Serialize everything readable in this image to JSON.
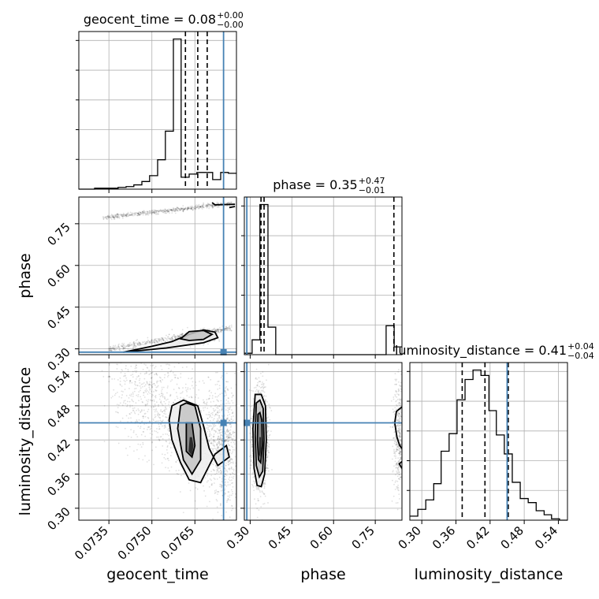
{
  "colors": {
    "truth": "#4682b4",
    "line": "#000000",
    "grid": "#b0b0b0",
    "scatter": "#000000"
  },
  "chart_data": {
    "type": "corner",
    "grid": true,
    "parameters": [
      "geocent_time",
      "phase",
      "luminosity_distance"
    ],
    "truths": {
      "geocent_time": 0.0775,
      "phase": 0.288,
      "luminosity_distance": 0.45
    },
    "ranges": {
      "geocent_time": [
        0.07245,
        0.07795
      ],
      "phase": [
        0.279,
        0.846
      ],
      "luminosity_distance": [
        0.279,
        0.556
      ]
    },
    "ticks": {
      "geocent_time": {
        "values": [
          0.0735,
          0.075,
          0.0765
        ],
        "labels": [
          "0.0735",
          "0.0750",
          "0.0765"
        ]
      },
      "phase": {
        "values": [
          0.3,
          0.45,
          0.6,
          0.75
        ],
        "labels": [
          "0.30",
          "0.45",
          "0.60",
          "0.75"
        ]
      },
      "luminosity_distance": {
        "values": [
          0.3,
          0.36,
          0.42,
          0.48,
          0.54
        ],
        "labels": [
          "0.30",
          "0.36",
          "0.42",
          "0.48",
          "0.54"
        ]
      }
    },
    "titles": {
      "geocent_time": {
        "prefix": "geocent_time = ",
        "value": "0.08",
        "plus": "+0.00",
        "minus": "−0.00"
      },
      "phase": {
        "prefix": "phase = ",
        "value": "0.35",
        "plus": "+0.47",
        "minus": "−0.01"
      },
      "luminosity_distance": {
        "prefix": "luminosity_distance = ",
        "value": "0.41",
        "plus": "+0.04",
        "minus": "−0.04"
      }
    },
    "axis_labels": {
      "x": [
        "geocent_time",
        "phase",
        "luminosity_distance"
      ],
      "y": [
        "phase",
        "luminosity_distance"
      ]
    },
    "histograms": {
      "geocent_time": {
        "edges": [
          0.07245,
          0.07272,
          0.073,
          0.07327,
          0.07355,
          0.07382,
          0.0741,
          0.07437,
          0.07465,
          0.07492,
          0.0752,
          0.07547,
          0.07575,
          0.07602,
          0.0763,
          0.07657,
          0.07685,
          0.07712,
          0.0774,
          0.07767,
          0.07795
        ],
        "counts": [
          0,
          0,
          0.6,
          0.6,
          0.6,
          1.1,
          1.6,
          2.7,
          4.8,
          8.5,
          18.5,
          36.5,
          94.5,
          7.5,
          9.5,
          10.5,
          10.5,
          6.0,
          10.5,
          10.0
        ],
        "quantiles": [
          0.07617,
          0.0766,
          0.07693
        ]
      },
      "phase": {
        "edges": [
          0.279,
          0.307,
          0.335,
          0.364,
          0.392,
          0.42,
          0.449,
          0.477,
          0.506,
          0.534,
          0.562,
          0.591,
          0.619,
          0.647,
          0.676,
          0.704,
          0.732,
          0.761,
          0.789,
          0.818,
          0.846
        ],
        "counts": [
          4,
          42,
          425,
          78,
          0,
          0,
          0,
          0,
          0,
          0,
          0,
          0,
          0,
          0,
          0,
          0,
          0,
          0,
          82,
          22
        ],
        "quantiles": [
          0.339,
          0.35,
          0.817
        ]
      },
      "luminosity_distance": {
        "edges": [
          0.279,
          0.293,
          0.307,
          0.321,
          0.334,
          0.348,
          0.362,
          0.376,
          0.39,
          0.404,
          0.418,
          0.431,
          0.445,
          0.459,
          0.473,
          0.487,
          0.501,
          0.515,
          0.528,
          0.542,
          0.556
        ],
        "counts": [
          0.3,
          0.8,
          1.5,
          2.7,
          5.1,
          6.4,
          8.9,
          10.4,
          11.1,
          10.7,
          8.1,
          6.3,
          4.9,
          2.8,
          1.6,
          1.3,
          0.7,
          0.4,
          0.1,
          0.0
        ],
        "quantiles": [
          0.371,
          0.411,
          0.452
        ]
      }
    },
    "contours": {
      "geocent_time|phase": [
        {
          "level": "outer",
          "points": [
            [
              0.074,
              0.288
            ],
            [
              0.075,
              0.309
            ],
            [
              0.0757,
              0.326
            ],
            [
              0.0763,
              0.352
            ],
            [
              0.0768,
              0.368
            ],
            [
              0.0772,
              0.36
            ],
            [
              0.0773,
              0.34
            ],
            [
              0.0768,
              0.322
            ],
            [
              0.0755,
              0.303
            ],
            [
              0.0745,
              0.293
            ],
            [
              0.074,
              0.288
            ]
          ]
        },
        {
          "level": "middle",
          "points": [
            [
              0.076,
              0.336
            ],
            [
              0.0763,
              0.362
            ],
            [
              0.0768,
              0.366
            ],
            [
              0.0771,
              0.352
            ],
            [
              0.0768,
              0.334
            ],
            [
              0.0763,
              0.33
            ],
            [
              0.076,
              0.336
            ]
          ]
        },
        {
          "level": "outer",
          "points": [
            [
              0.0771,
              0.826
            ],
            [
              0.0772,
              0.818
            ],
            [
              0.0779,
              0.82
            ]
          ]
        },
        {
          "level": "outer",
          "points": [
            [
              0.0777,
              0.808
            ],
            [
              0.0779,
              0.812
            ]
          ]
        }
      ],
      "geocent_time|luminosity_distance": [
        {
          "level": "outer",
          "points": [
            [
              0.0757,
              0.48
            ],
            [
              0.0756,
              0.455
            ],
            [
              0.0757,
              0.42
            ],
            [
              0.076,
              0.38
            ],
            [
              0.0763,
              0.35
            ],
            [
              0.0767,
              0.345
            ],
            [
              0.0769,
              0.365
            ],
            [
              0.0772,
              0.395
            ],
            [
              0.0776,
              0.41
            ],
            [
              0.0777,
              0.39
            ],
            [
              0.0773,
              0.375
            ],
            [
              0.077,
              0.405
            ],
            [
              0.0768,
              0.445
            ],
            [
              0.0766,
              0.48
            ],
            [
              0.0761,
              0.49
            ],
            [
              0.0757,
              0.48
            ]
          ]
        },
        {
          "level": "middle",
          "points": [
            [
              0.076,
              0.48
            ],
            [
              0.0759,
              0.44
            ],
            [
              0.0761,
              0.385
            ],
            [
              0.0764,
              0.36
            ],
            [
              0.0767,
              0.385
            ],
            [
              0.0767,
              0.44
            ],
            [
              0.0765,
              0.48
            ],
            [
              0.0762,
              0.485
            ],
            [
              0.076,
              0.48
            ]
          ]
        },
        {
          "level": "inner",
          "points": [
            [
              0.0762,
              0.45
            ],
            [
              0.0762,
              0.4
            ],
            [
              0.0764,
              0.39
            ],
            [
              0.0765,
              0.41
            ],
            [
              0.0764,
              0.45
            ],
            [
              0.0762,
              0.45
            ]
          ]
        },
        {
          "level": "core",
          "points": [
            [
              0.07632,
              0.425
            ],
            [
              0.07628,
              0.4
            ],
            [
              0.0764,
              0.392
            ],
            [
              0.07645,
              0.41
            ],
            [
              0.0764,
              0.425
            ],
            [
              0.07632,
              0.425
            ]
          ]
        }
      ],
      "phase|luminosity_distance": [
        {
          "level": "outer",
          "points": [
            [
              0.318,
              0.5
            ],
            [
              0.31,
              0.44
            ],
            [
              0.314,
              0.37
            ],
            [
              0.325,
              0.34
            ],
            [
              0.34,
              0.338
            ],
            [
              0.352,
              0.36
            ],
            [
              0.358,
              0.42
            ],
            [
              0.355,
              0.48
            ],
            [
              0.34,
              0.5
            ],
            [
              0.318,
              0.5
            ]
          ]
        },
        {
          "level": "middle",
          "points": [
            [
              0.322,
              0.485
            ],
            [
              0.318,
              0.43
            ],
            [
              0.322,
              0.375
            ],
            [
              0.333,
              0.355
            ],
            [
              0.345,
              0.365
            ],
            [
              0.35,
              0.42
            ],
            [
              0.347,
              0.475
            ],
            [
              0.335,
              0.49
            ],
            [
              0.322,
              0.485
            ]
          ]
        },
        {
          "level": "inner",
          "points": [
            [
              0.328,
              0.465
            ],
            [
              0.326,
              0.42
            ],
            [
              0.33,
              0.385
            ],
            [
              0.338,
              0.38
            ],
            [
              0.344,
              0.41
            ],
            [
              0.342,
              0.455
            ],
            [
              0.335,
              0.468
            ],
            [
              0.328,
              0.465
            ]
          ]
        },
        {
          "level": "core",
          "points": [
            [
              0.333,
              0.425
            ],
            [
              0.331,
              0.395
            ],
            [
              0.336,
              0.39
            ],
            [
              0.34,
              0.405
            ],
            [
              0.339,
              0.425
            ],
            [
              0.333,
              0.425
            ]
          ]
        },
        {
          "level": "outer",
          "points": [
            [
              0.846,
              0.478
            ],
            [
              0.826,
              0.47
            ],
            [
              0.82,
              0.45
            ],
            [
              0.828,
              0.425
            ],
            [
              0.838,
              0.41
            ],
            [
              0.846,
              0.405
            ]
          ]
        },
        {
          "level": "outer",
          "points": [
            [
              0.846,
              0.382
            ],
            [
              0.836,
              0.378
            ],
            [
              0.846,
              0.37
            ]
          ]
        }
      ]
    }
  }
}
